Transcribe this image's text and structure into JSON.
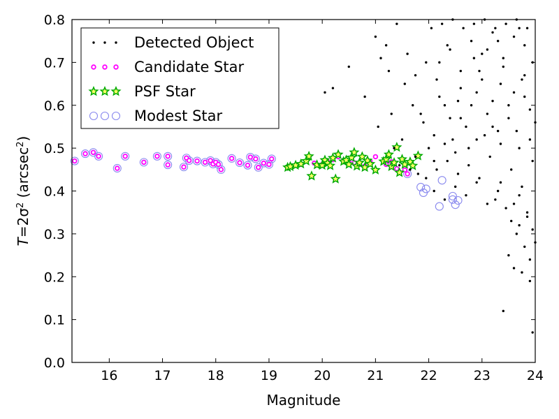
{
  "chart_data": {
    "type": "scatter",
    "xlabel": "Magnitude",
    "ylabel": "T = 2σ² (arcsec²)",
    "ylabel_parts": {
      "pre": "T",
      "eq": "=2σ",
      "sup1": "2",
      "mid": " (arcsec",
      "sup2": "2",
      "post": ")"
    },
    "xlim": [
      15.3,
      24
    ],
    "ylim": [
      0.0,
      0.8
    ],
    "x_ticks": [
      16,
      17,
      18,
      19,
      20,
      21,
      22,
      23,
      24
    ],
    "y_ticks": [
      0.0,
      0.1,
      0.2,
      0.3,
      0.4,
      0.5,
      0.6,
      0.7,
      0.8
    ],
    "grid": false,
    "legend_position": "top-left",
    "series": [
      {
        "name": "Detected Object",
        "marker": "dot",
        "color": "#000000",
        "points": [
          [
            21.05,
            0.55
          ],
          [
            21.3,
            0.58
          ],
          [
            21.5,
            0.52
          ],
          [
            21.7,
            0.6
          ],
          [
            21.9,
            0.56
          ],
          [
            22.0,
            0.5
          ],
          [
            22.1,
            0.53
          ],
          [
            22.2,
            0.62
          ],
          [
            22.3,
            0.51
          ],
          [
            22.4,
            0.57
          ],
          [
            22.5,
            0.49
          ],
          [
            22.6,
            0.64
          ],
          [
            22.7,
            0.55
          ],
          [
            22.8,
            0.6
          ],
          [
            22.9,
            0.52
          ],
          [
            23.0,
            0.66
          ],
          [
            23.1,
            0.58
          ],
          [
            23.2,
            0.61
          ],
          [
            23.3,
            0.54
          ],
          [
            23.4,
            0.69
          ],
          [
            23.5,
            0.57
          ],
          [
            23.6,
            0.63
          ],
          [
            23.7,
            0.5
          ],
          [
            23.8,
            0.67
          ],
          [
            23.9,
            0.59
          ],
          [
            24.0,
            0.56
          ],
          [
            22.15,
            0.45
          ],
          [
            22.35,
            0.47
          ],
          [
            22.55,
            0.44
          ],
          [
            22.75,
            0.46
          ],
          [
            22.95,
            0.43
          ],
          [
            23.15,
            0.48
          ],
          [
            23.35,
            0.42
          ],
          [
            23.55,
            0.45
          ],
          [
            23.75,
            0.41
          ],
          [
            23.95,
            0.47
          ],
          [
            22.2,
            0.7
          ],
          [
            22.4,
            0.73
          ],
          [
            22.6,
            0.68
          ],
          [
            22.8,
            0.75
          ],
          [
            23.0,
            0.72
          ],
          [
            23.2,
            0.77
          ],
          [
            23.4,
            0.71
          ],
          [
            23.6,
            0.76
          ],
          [
            23.8,
            0.74
          ],
          [
            23.95,
            0.7
          ],
          [
            22.05,
            0.78
          ],
          [
            22.25,
            0.79
          ],
          [
            22.45,
            0.8
          ],
          [
            22.65,
            0.78
          ],
          [
            22.85,
            0.79
          ],
          [
            23.05,
            0.8
          ],
          [
            23.25,
            0.78
          ],
          [
            23.45,
            0.79
          ],
          [
            23.65,
            0.8
          ],
          [
            23.85,
            0.78
          ],
          [
            20.05,
            0.63
          ],
          [
            20.2,
            0.64
          ],
          [
            20.5,
            0.69
          ],
          [
            20.8,
            0.62
          ],
          [
            21.0,
            0.76
          ],
          [
            21.1,
            0.71
          ],
          [
            21.2,
            0.74
          ],
          [
            21.25,
            0.68
          ],
          [
            21.4,
            0.79
          ],
          [
            21.55,
            0.65
          ],
          [
            21.6,
            0.72
          ],
          [
            21.75,
            0.67
          ],
          [
            21.85,
            0.58
          ],
          [
            21.95,
            0.7
          ],
          [
            23.25,
            0.38
          ],
          [
            23.45,
            0.36
          ],
          [
            23.55,
            0.33
          ],
          [
            23.65,
            0.3
          ],
          [
            23.7,
            0.39
          ],
          [
            23.8,
            0.27
          ],
          [
            23.85,
            0.35
          ],
          [
            23.9,
            0.24
          ],
          [
            23.95,
            0.31
          ],
          [
            24.0,
            0.28
          ],
          [
            23.6,
            0.22
          ],
          [
            23.75,
            0.21
          ],
          [
            23.9,
            0.19
          ],
          [
            23.5,
            0.25
          ],
          [
            23.4,
            0.12
          ],
          [
            23.95,
            0.07
          ],
          [
            23.85,
            0.34
          ],
          [
            23.7,
            0.32
          ],
          [
            23.6,
            0.37
          ],
          [
            23.3,
            0.4
          ],
          [
            22.1,
            0.4
          ],
          [
            22.3,
            0.38
          ],
          [
            22.5,
            0.41
          ],
          [
            22.7,
            0.39
          ],
          [
            22.9,
            0.42
          ],
          [
            23.1,
            0.37
          ],
          [
            21.45,
            0.46
          ],
          [
            21.65,
            0.45
          ],
          [
            21.8,
            0.44
          ],
          [
            21.95,
            0.43
          ],
          [
            21.35,
            0.5
          ],
          [
            21.75,
            0.48
          ],
          [
            22.1,
            0.47
          ],
          [
            22.3,
            0.6
          ],
          [
            22.6,
            0.57
          ],
          [
            22.9,
            0.63
          ],
          [
            23.2,
            0.55
          ],
          [
            23.5,
            0.6
          ],
          [
            23.8,
            0.62
          ],
          [
            22.45,
            0.52
          ],
          [
            22.75,
            0.5
          ],
          [
            23.05,
            0.53
          ],
          [
            23.35,
            0.51
          ],
          [
            23.65,
            0.54
          ],
          [
            23.9,
            0.52
          ],
          [
            22.15,
            0.66
          ],
          [
            22.55,
            0.61
          ],
          [
            22.95,
            0.68
          ],
          [
            23.35,
            0.65
          ],
          [
            23.75,
            0.66
          ],
          [
            23.1,
            0.73
          ],
          [
            23.3,
            0.75
          ],
          [
            23.7,
            0.78
          ],
          [
            22.85,
            0.71
          ],
          [
            22.35,
            0.74
          ]
        ]
      },
      {
        "name": "Candidate Star",
        "marker": "small-circle",
        "color": "#ff00ff",
        "points": [
          [
            15.35,
            0.47
          ],
          [
            15.55,
            0.487
          ],
          [
            15.7,
            0.49
          ],
          [
            15.8,
            0.481
          ],
          [
            16.15,
            0.453
          ],
          [
            16.3,
            0.481
          ],
          [
            16.65,
            0.467
          ],
          [
            16.9,
            0.481
          ],
          [
            17.1,
            0.481
          ],
          [
            17.1,
            0.461
          ],
          [
            17.4,
            0.456
          ],
          [
            17.45,
            0.477
          ],
          [
            17.5,
            0.471
          ],
          [
            17.65,
            0.47
          ],
          [
            17.8,
            0.467
          ],
          [
            17.9,
            0.471
          ],
          [
            17.95,
            0.463
          ],
          [
            18.0,
            0.467
          ],
          [
            18.05,
            0.462
          ],
          [
            18.1,
            0.45
          ],
          [
            18.3,
            0.476
          ],
          [
            18.45,
            0.466
          ],
          [
            18.6,
            0.46
          ],
          [
            18.65,
            0.479
          ],
          [
            18.75,
            0.475
          ],
          [
            18.8,
            0.455
          ],
          [
            18.9,
            0.465
          ],
          [
            19.0,
            0.462
          ],
          [
            19.05,
            0.475
          ],
          [
            19.35,
            0.456
          ],
          [
            19.45,
            0.458
          ],
          [
            19.6,
            0.462
          ],
          [
            19.75,
            0.48
          ],
          [
            19.85,
            0.465
          ],
          [
            20.0,
            0.462
          ],
          [
            20.1,
            0.468
          ],
          [
            20.2,
            0.473
          ],
          [
            20.3,
            0.48
          ],
          [
            20.4,
            0.471
          ],
          [
            20.5,
            0.47
          ],
          [
            20.6,
            0.466
          ],
          [
            20.7,
            0.462
          ],
          [
            20.8,
            0.458
          ],
          [
            20.9,
            0.469
          ],
          [
            21.0,
            0.48
          ],
          [
            21.2,
            0.462
          ],
          [
            21.3,
            0.468
          ],
          [
            21.4,
            0.452
          ],
          [
            21.55,
            0.449
          ],
          [
            21.6,
            0.44
          ]
        ]
      },
      {
        "name": "PSF Star",
        "marker": "star",
        "color": "#00aa00",
        "points": [
          [
            19.35,
            0.455
          ],
          [
            19.4,
            0.457
          ],
          [
            19.5,
            0.46
          ],
          [
            19.6,
            0.463
          ],
          [
            19.7,
            0.47
          ],
          [
            19.75,
            0.481
          ],
          [
            19.8,
            0.435
          ],
          [
            19.9,
            0.461
          ],
          [
            20.0,
            0.46
          ],
          [
            20.05,
            0.472
          ],
          [
            20.1,
            0.465
          ],
          [
            20.15,
            0.459
          ],
          [
            20.2,
            0.477
          ],
          [
            20.25,
            0.428
          ],
          [
            20.3,
            0.485
          ],
          [
            20.4,
            0.469
          ],
          [
            20.45,
            0.472
          ],
          [
            20.5,
            0.462
          ],
          [
            20.55,
            0.478
          ],
          [
            20.6,
            0.49
          ],
          [
            20.65,
            0.458
          ],
          [
            20.7,
            0.466
          ],
          [
            20.75,
            0.48
          ],
          [
            20.8,
            0.455
          ],
          [
            20.85,
            0.471
          ],
          [
            20.9,
            0.463
          ],
          [
            21.0,
            0.449
          ],
          [
            21.15,
            0.469
          ],
          [
            21.2,
            0.474
          ],
          [
            21.25,
            0.485
          ],
          [
            21.3,
            0.457
          ],
          [
            21.35,
            0.466
          ],
          [
            21.4,
            0.502
          ],
          [
            21.45,
            0.443
          ],
          [
            21.5,
            0.474
          ],
          [
            21.55,
            0.462
          ],
          [
            21.65,
            0.468
          ],
          [
            21.7,
            0.459
          ],
          [
            21.8,
            0.482
          ]
        ]
      },
      {
        "name": "Modest Star",
        "marker": "large-open-circle",
        "color": "#8888ee",
        "points": [
          [
            15.35,
            0.47
          ],
          [
            15.55,
            0.487
          ],
          [
            15.7,
            0.49
          ],
          [
            15.8,
            0.481
          ],
          [
            16.15,
            0.453
          ],
          [
            16.3,
            0.481
          ],
          [
            16.65,
            0.467
          ],
          [
            16.9,
            0.481
          ],
          [
            17.1,
            0.481
          ],
          [
            17.1,
            0.461
          ],
          [
            17.4,
            0.456
          ],
          [
            17.45,
            0.477
          ],
          [
            17.5,
            0.471
          ],
          [
            17.65,
            0.47
          ],
          [
            17.8,
            0.467
          ],
          [
            17.9,
            0.471
          ],
          [
            17.95,
            0.463
          ],
          [
            18.0,
            0.467
          ],
          [
            18.05,
            0.462
          ],
          [
            18.1,
            0.45
          ],
          [
            18.3,
            0.476
          ],
          [
            18.45,
            0.466
          ],
          [
            18.6,
            0.46
          ],
          [
            18.65,
            0.479
          ],
          [
            18.75,
            0.475
          ],
          [
            18.8,
            0.455
          ],
          [
            18.9,
            0.465
          ],
          [
            19.0,
            0.462
          ],
          [
            19.05,
            0.475
          ],
          [
            21.6,
            0.44
          ],
          [
            21.85,
            0.409
          ],
          [
            21.9,
            0.396
          ],
          [
            21.95,
            0.405
          ],
          [
            22.2,
            0.364
          ],
          [
            22.25,
            0.425
          ],
          [
            22.45,
            0.388
          ],
          [
            22.5,
            0.368
          ],
          [
            22.55,
            0.378
          ],
          [
            22.45,
            0.38
          ]
        ]
      }
    ]
  }
}
